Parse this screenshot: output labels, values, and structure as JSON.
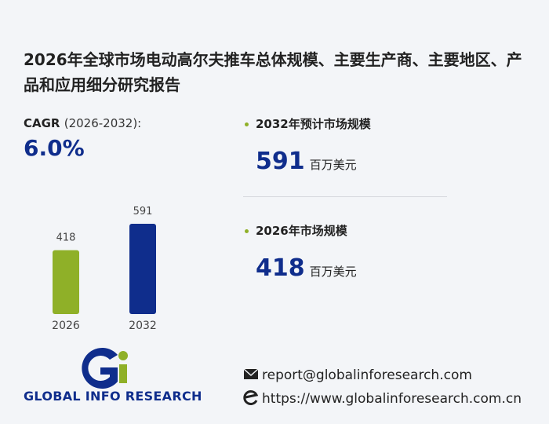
{
  "title": "2026年全球市场电动高尔夫推车总体规模、主要生产商、主要地区、产品和应用细分研究报告",
  "cagr": {
    "label": "CAGR",
    "period": "(2026-2032):",
    "value": "6.0%"
  },
  "chart_data": {
    "type": "bar",
    "categories": [
      "2026",
      "2032"
    ],
    "values": [
      418,
      591
    ],
    "colors": [
      "#8fb028",
      "#0f2d8c"
    ]
  },
  "stats": [
    {
      "label": "2032年预计市场规模",
      "value": "591",
      "unit": "百万美元"
    },
    {
      "label": "2026年市场规模",
      "value": "418",
      "unit": "百万美元"
    }
  ],
  "logo": {
    "text": "GLOBAL INFO RESEARCH"
  },
  "contact": {
    "email": "report@globalinforesearch.com",
    "website": "https://www.globalinforesearch.com.cn"
  }
}
